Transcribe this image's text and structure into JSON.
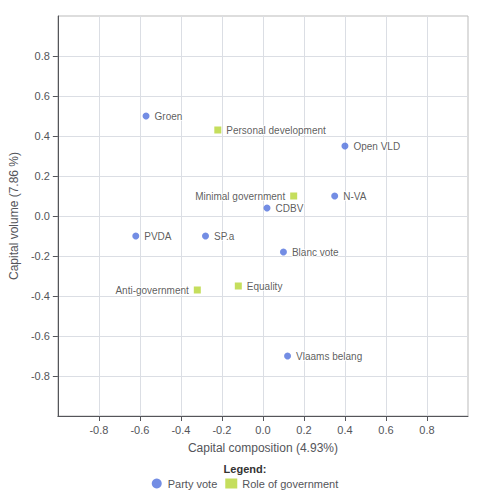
{
  "chart_data": {
    "type": "scatter",
    "xlabel": "Capital composition (4.93%)",
    "ylabel": "Capital volume (7.86 %)",
    "xlim": [
      -1.0,
      1.0
    ],
    "ylim": [
      -1.0,
      1.0
    ],
    "xticks": [
      -0.8,
      -0.6,
      -0.4,
      -0.2,
      {
        "value": 0,
        "label": "0.0"
      },
      0.2,
      0.4,
      0.6,
      0.8
    ],
    "yticks": [
      -0.8,
      -0.6,
      -0.4,
      -0.2,
      {
        "value": 0,
        "label": "0.0"
      },
      0.2,
      0.4,
      0.6,
      0.8
    ],
    "grid": true,
    "legend": "bottom",
    "legend_title": "Legend:",
    "series": [
      {
        "name": "Party vote",
        "marker": "circle",
        "x": [
          -0.57,
          0.4,
          0.35,
          0.02,
          -0.62,
          -0.28,
          0.1,
          0.12
        ],
        "values": [
          0.5,
          0.35,
          0.1,
          0.04,
          -0.1,
          -0.1,
          -0.18,
          -0.7
        ],
        "labels": [
          "Groen",
          "Open VLD",
          "N-VA",
          "CDBV",
          "PVDA",
          "SP.a",
          "Blanc vote",
          "Vlaams belang"
        ]
      },
      {
        "name": "Role of government",
        "marker": "square",
        "x": [
          -0.22,
          0.15,
          -0.32,
          -0.12
        ],
        "values": [
          0.43,
          0.1,
          -0.37,
          -0.35
        ],
        "labels": [
          "Personal development",
          "Minimal government",
          "Anti-government",
          "Equality"
        ]
      }
    ]
  }
}
